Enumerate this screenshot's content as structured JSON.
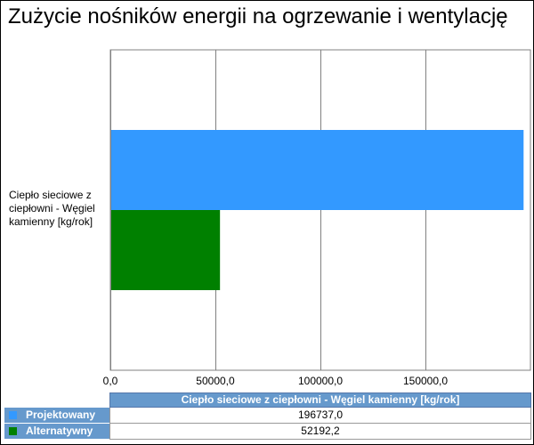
{
  "title": "Zużycie nośników energii na ogrzewanie i wentylację",
  "chart_data": {
    "type": "bar",
    "orientation": "horizontal",
    "title": "Zużycie nośników energii na ogrzewanie i wentylację",
    "categories": [
      "Ciepło sieciowe z ciepłowni - Węgiel kamienny [kg/rok]"
    ],
    "series": [
      {
        "name": "Projektowany",
        "values": [
          196737.0
        ],
        "color": "#3399ff"
      },
      {
        "name": "Alternatywny",
        "values": [
          52192.2
        ],
        "color": "#008000"
      }
    ],
    "xlim": [
      0,
      200000
    ],
    "x_ticks": [
      0,
      50000,
      100000,
      150000
    ],
    "x_tick_labels": [
      "0,0",
      "50000,0",
      "100000,0",
      "150000,0"
    ],
    "grid": true,
    "legend": "data-table-below"
  },
  "table": {
    "header": "Ciepło sieciowe z ciepłowni - Węgiel kamienny [kg/rok]",
    "rows": [
      {
        "label": "Projektowany",
        "value": "196737,0",
        "color": "#3399ff"
      },
      {
        "label": "Alternatywny",
        "value": "52192,2",
        "color": "#008000"
      }
    ]
  }
}
